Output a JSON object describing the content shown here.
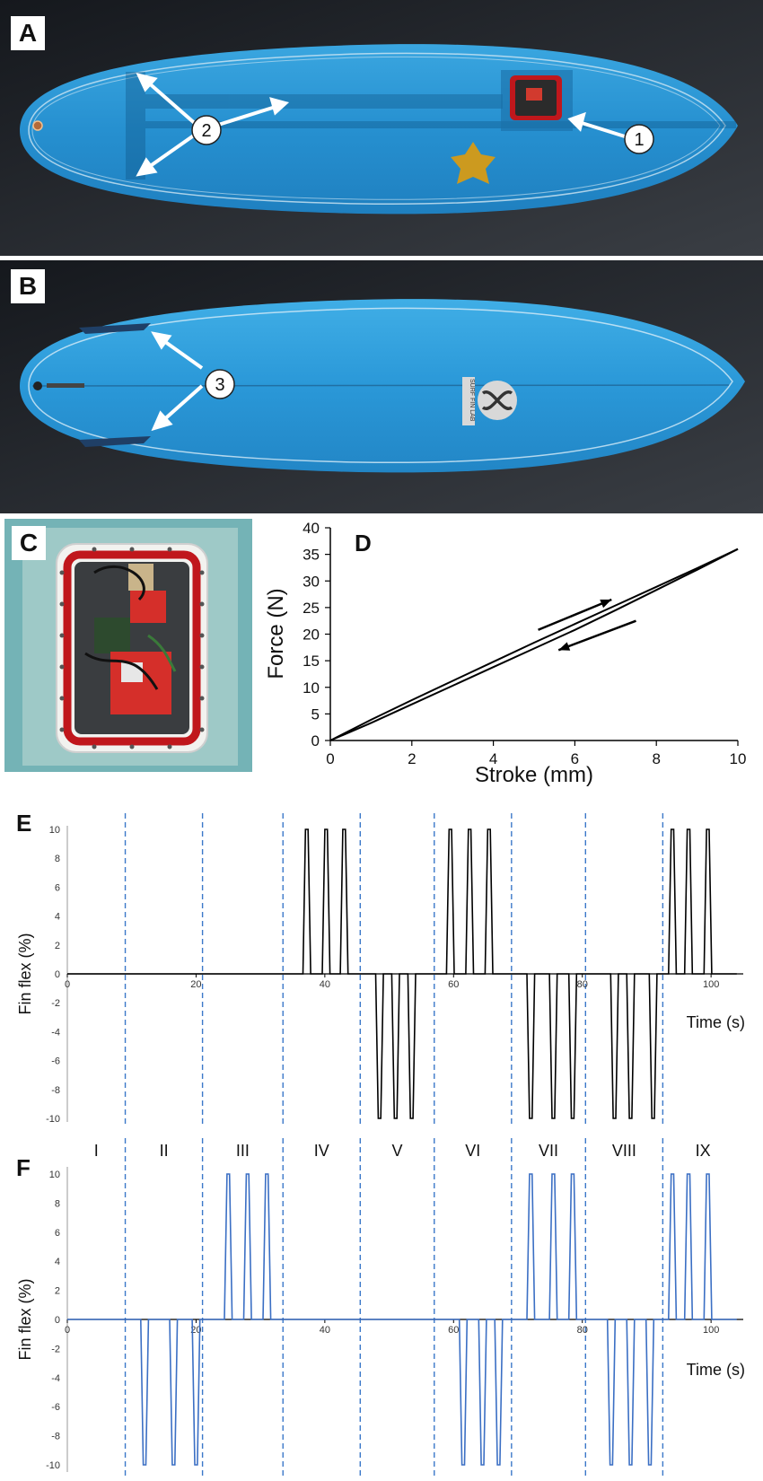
{
  "panels": {
    "a": {
      "letter": "A",
      "callouts": [
        "2",
        "1"
      ]
    },
    "b": {
      "letter": "B",
      "callouts": [
        "3"
      ]
    },
    "c": {
      "letter": "C"
    },
    "d": {
      "letter": "D"
    },
    "e": {
      "letter": "E"
    },
    "f": {
      "letter": "F"
    }
  },
  "logo_text": "SURF FIN LAB",
  "colors": {
    "board": "#2a9ad8",
    "board_dark": "#1b74ae",
    "photo_bg": "#1e2228",
    "series_e": "#000000",
    "series_f": "#3b6fc4",
    "divider": "#3b78c9",
    "enclosure_red": "#c0171c",
    "star": "#cc9a1f"
  },
  "chart_data": [
    {
      "panel": "D",
      "type": "line",
      "xlabel": "Stroke (mm)",
      "ylabel": "Force (N)",
      "xlim": [
        0,
        10
      ],
      "ylim": [
        0,
        40
      ],
      "xticks": [
        0,
        2,
        4,
        6,
        8,
        10
      ],
      "yticks": [
        0,
        5,
        10,
        15,
        20,
        25,
        30,
        35,
        40
      ],
      "series": [
        {
          "x": [
            0,
            1,
            2,
            3,
            4,
            5,
            6,
            7,
            8,
            9,
            10
          ],
          "y": [
            0,
            3.9,
            7.6,
            11.2,
            14.8,
            18.4,
            21.9,
            25.4,
            28.9,
            32.4,
            36
          ]
        },
        {
          "x": [
            0,
            1,
            2,
            3,
            4,
            5,
            6,
            7,
            8,
            9,
            10
          ],
          "y": [
            0,
            3.3,
            6.8,
            10.3,
            13.8,
            17.3,
            20.8,
            24.5,
            28.3,
            32.1,
            36
          ]
        }
      ],
      "arrows": [
        {
          "from": [
            5.1,
            20.8
          ],
          "to": [
            6.9,
            26.5
          ]
        },
        {
          "from": [
            7.5,
            22.5
          ],
          "to": [
            5.6,
            17.0
          ]
        }
      ]
    },
    {
      "panel": "E",
      "type": "line",
      "xlabel": "Time (s)",
      "ylabel": "Fin flex (%)",
      "xlim": [
        0,
        105
      ],
      "ylim": [
        -10,
        10
      ],
      "xticks": [
        0,
        20,
        40,
        60,
        80,
        100
      ],
      "xtick_labels": [
        "0",
        "20",
        "40",
        "60",
        "80",
        "100"
      ],
      "yticks": [
        -10,
        -8,
        -6,
        -4,
        -2,
        0,
        2,
        4,
        6,
        8,
        10
      ],
      "dividers": [
        9,
        21,
        33.5,
        45.5,
        57,
        69,
        80.5,
        92.5
      ],
      "peaks_pos": [
        37.2,
        40.2,
        43.0,
        59.5,
        62.5,
        65.5,
        94.0,
        96.5,
        99.5
      ],
      "peaks_neg": [
        48.5,
        51.0,
        53.5,
        72.0,
        75.5,
        78.5,
        85.0,
        87.5,
        91.0
      ]
    },
    {
      "panel": "F",
      "type": "line",
      "xlabel": "Time (s)",
      "ylabel": "Fin flex (%)",
      "xlim": [
        0,
        105
      ],
      "ylim": [
        -10,
        10
      ],
      "xticks": [
        0,
        20,
        40,
        60,
        80,
        100
      ],
      "xtick_labels": [
        "0",
        "20",
        "40",
        "60",
        "80",
        "100"
      ],
      "yticks": [
        -10,
        -8,
        -6,
        -4,
        -2,
        0,
        2,
        4,
        6,
        8,
        10
      ],
      "dividers": [
        9,
        21,
        33.5,
        45.5,
        57,
        69,
        80.5,
        92.5
      ],
      "regions": [
        "I",
        "II",
        "III",
        "IV",
        "V",
        "VI",
        "VII",
        "VIII",
        "IX"
      ],
      "peaks_pos": [
        25.0,
        28.0,
        31.0,
        72.0,
        75.5,
        78.5,
        94.0,
        96.5,
        99.5
      ],
      "peaks_neg": [
        12.0,
        16.5,
        20.0,
        61.5,
        64.5,
        67.0,
        84.5,
        87.5,
        90.5
      ]
    }
  ]
}
